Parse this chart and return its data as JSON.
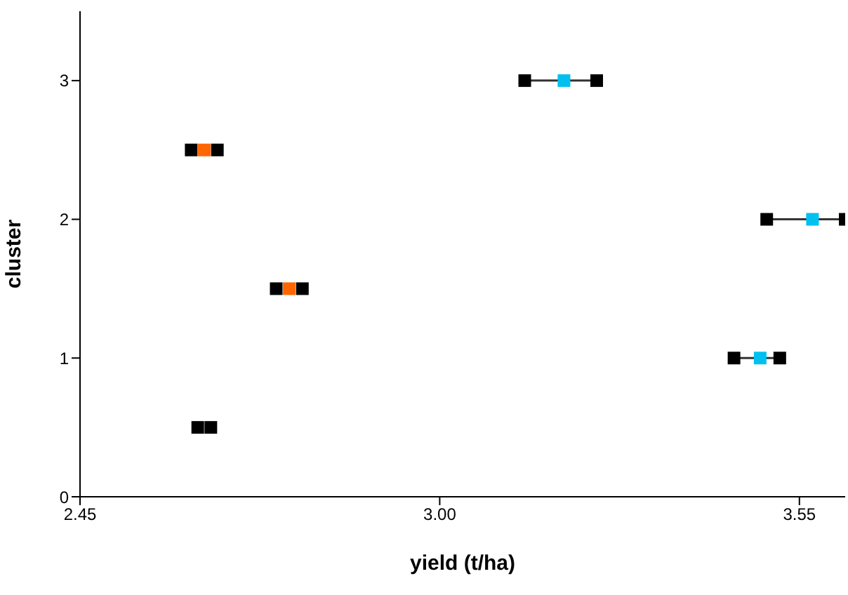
{
  "chart_data": {
    "type": "scatter",
    "xlabel": "yield (t/ha)",
    "ylabel": "cluster",
    "xlim": [
      2.45,
      3.62
    ],
    "xticks": [
      {
        "value": 2.45,
        "label": "2.45"
      },
      {
        "value": 3.0,
        "label": "3.00"
      },
      {
        "value": 3.55,
        "label": "3.55"
      }
    ],
    "ylim": [
      0,
      3.5
    ],
    "yticks": [
      0,
      1,
      2,
      3
    ],
    "marker": "square",
    "series": [
      {
        "type": "line",
        "marker": "none",
        "color": "#333333",
        "x": [
          3.13,
          3.24
        ],
        "values": [
          3,
          3
        ]
      },
      {
        "type": "line",
        "marker": "none",
        "color": "#333333",
        "x": [
          3.5,
          3.62
        ],
        "values": [
          2,
          2
        ]
      },
      {
        "type": "line",
        "marker": "none",
        "color": "#333333",
        "x": [
          3.45,
          3.52
        ],
        "values": [
          1,
          1
        ]
      },
      {
        "color": "#000000",
        "x": [
          3.13,
          3.24,
          3.5,
          3.62,
          3.45,
          3.52,
          2.62,
          2.66,
          2.75,
          2.79,
          2.63,
          2.65
        ],
        "values": [
          3,
          3,
          2,
          2,
          1,
          1,
          2.5,
          2.5,
          1.5,
          1.5,
          0.5,
          0.5
        ]
      },
      {
        "color": "#00c0f0",
        "x": [
          3.49,
          3.57,
          3.19
        ],
        "values": [
          1,
          2,
          3
        ]
      },
      {
        "color": "#ff6600",
        "x": [
          2.77,
          2.64
        ],
        "values": [
          1.5,
          2.5
        ]
      }
    ]
  }
}
